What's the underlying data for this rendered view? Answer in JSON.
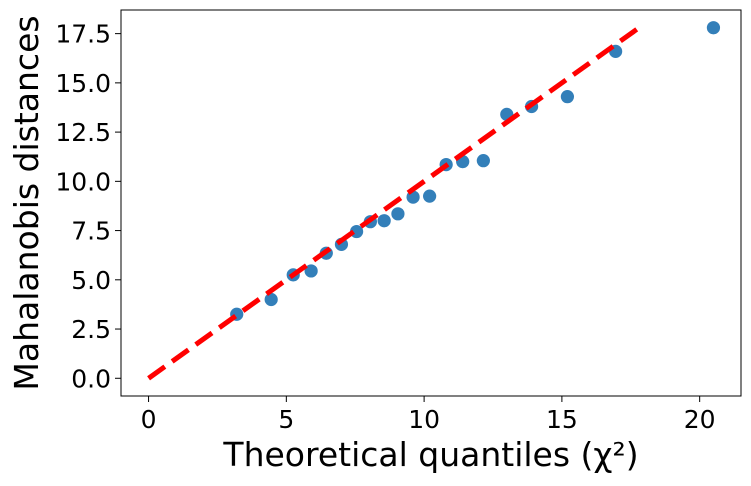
{
  "chart_data": {
    "type": "scatter",
    "title": "",
    "xlabel": "Theoretical quantiles (χ²)",
    "ylabel": "Mahalanobis distances",
    "xlim": [
      -1.0,
      21.5
    ],
    "ylim": [
      -0.9,
      18.7
    ],
    "xticks": [
      0,
      5,
      10,
      15,
      20
    ],
    "xtick_labels": [
      "0",
      "5",
      "10",
      "15",
      "20"
    ],
    "yticks": [
      0.0,
      2.5,
      5.0,
      7.5,
      10.0,
      12.5,
      15.0,
      17.5
    ],
    "ytick_labels": [
      "0.0",
      "2.5",
      "5.0",
      "7.5",
      "10.0",
      "12.5",
      "15.0",
      "17.5"
    ],
    "grid": false,
    "legend": "none",
    "series": [
      {
        "kind": "scatter",
        "color": "#2878b5",
        "points": [
          {
            "x": 3.2,
            "y": 3.25
          },
          {
            "x": 4.45,
            "y": 4.0
          },
          {
            "x": 5.25,
            "y": 5.25
          },
          {
            "x": 5.9,
            "y": 5.45
          },
          {
            "x": 6.45,
            "y": 6.35
          },
          {
            "x": 7.0,
            "y": 6.8
          },
          {
            "x": 7.55,
            "y": 7.45
          },
          {
            "x": 8.05,
            "y": 7.95
          },
          {
            "x": 8.55,
            "y": 8.0
          },
          {
            "x": 9.05,
            "y": 8.35
          },
          {
            "x": 9.6,
            "y": 9.2
          },
          {
            "x": 10.2,
            "y": 9.25
          },
          {
            "x": 10.8,
            "y": 10.85
          },
          {
            "x": 11.4,
            "y": 11.0
          },
          {
            "x": 12.15,
            "y": 11.05
          },
          {
            "x": 13.0,
            "y": 13.4
          },
          {
            "x": 13.9,
            "y": 13.8
          },
          {
            "x": 15.2,
            "y": 14.3
          },
          {
            "x": 16.95,
            "y": 16.6
          },
          {
            "x": 20.5,
            "y": 17.8
          }
        ]
      },
      {
        "kind": "reference-line",
        "color": "#ff0000",
        "style": "dashed",
        "x": [
          0,
          17.8
        ],
        "y": [
          0,
          17.8
        ]
      }
    ]
  }
}
